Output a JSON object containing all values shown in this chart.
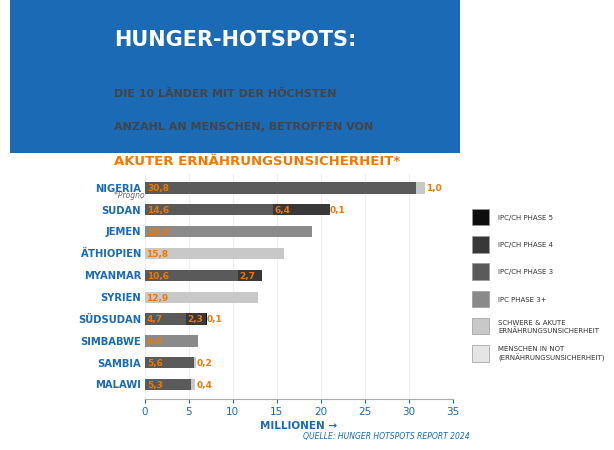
{
  "countries": [
    "NIGERIA",
    "SUDAN",
    "JEMEN",
    "ÄTHIOPIEN",
    "MYANMAR",
    "SYRIEN",
    "SÜDSUDAN",
    "SIMBABWE",
    "SAMBIA",
    "MALAWI"
  ],
  "segments": {
    "p3": [
      30.8,
      14.6,
      0,
      0,
      10.6,
      0,
      4.7,
      0,
      5.6,
      5.3
    ],
    "p3plus": [
      0,
      0,
      19.0,
      0,
      0,
      0,
      0,
      6.0,
      0,
      0
    ],
    "p4": [
      0,
      6.4,
      0,
      0,
      2.7,
      0,
      2.3,
      0,
      0,
      0
    ],
    "p5": [
      0,
      0.1,
      0,
      0,
      0,
      0,
      0.1,
      0,
      0,
      0
    ],
    "schwere": [
      1.0,
      0,
      0,
      15.8,
      0,
      12.9,
      0,
      0,
      0.2,
      0.4
    ],
    "mensen": [
      0,
      0,
      0,
      0,
      0,
      0,
      0,
      0,
      0,
      0
    ]
  },
  "labels": {
    "p3": [
      "30,8",
      "14,6",
      "",
      "",
      "10,6",
      "",
      "4,7",
      "",
      "5,6",
      "5,3"
    ],
    "p3plus": [
      "",
      "",
      "19,0",
      "",
      "",
      "",
      "",
      "6,0",
      "",
      ""
    ],
    "p4": [
      "",
      "6,4",
      "",
      "",
      "2,7",
      "",
      "2,3",
      "",
      "",
      ""
    ],
    "p5": [
      "",
      "0,1",
      "",
      "",
      "",
      "",
      "0,1",
      "",
      "",
      ""
    ],
    "schwere": [
      "1,0",
      "",
      "",
      "15,8",
      "",
      "12,9",
      "",
      "",
      "0,2",
      "0,4"
    ]
  },
  "colors": {
    "p3": "#5a5a5a",
    "p3plus": "#8a8a8a",
    "p4": "#383838",
    "p5": "#0d0d0d",
    "schwere": "#c8c8c8",
    "mensen": "#e5e5e5"
  },
  "label_color_orange": "#f07800",
  "background": "#ffffff",
  "title_box_color": "#1a6ab5",
  "title_text": "HUNGER-HOTSPOTS:",
  "subtitle1": "DIE 10 LÄNDER MIT DER HÖCHSTEN",
  "subtitle2": "ANZAHL AN MENSCHEN, BETROFFEN VON",
  "subtitle3": "AKUTER ERNÄHRUNGSUNSICHERHEIT*",
  "footnote": "*Prognose von November 2024 - Mai 2025",
  "xlabel": "MILLIONEN →",
  "source": "QUELLE: HUNGER HOTSPOTS REPORT 2024",
  "xlim": [
    0,
    35
  ],
  "xticks": [
    0,
    5,
    10,
    15,
    20,
    25,
    30,
    35
  ],
  "country_color": "#1a6ab5",
  "legend_labels": [
    "IPC/CH PHASE 5",
    "IPC/CH PHASE 4",
    "IPC/CH PHASE 3",
    "IPC PHASE 3+",
    "SCHWERE & AKUTE\nERNÄHRUNGSUNSICHERHEIT",
    "MENSCHEN IN NOT\n(ERNÄHRUNGSUNSICHERHEIT)"
  ],
  "legend_colors": [
    "#0d0d0d",
    "#383838",
    "#5a5a5a",
    "#8a8a8a",
    "#c8c8c8",
    "#e5e5e5"
  ]
}
